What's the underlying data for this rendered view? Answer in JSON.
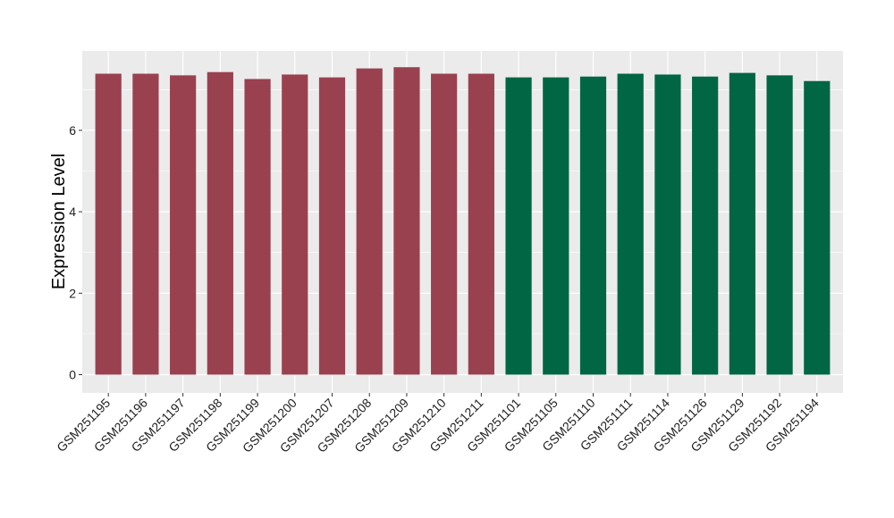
{
  "chart_data": {
    "type": "bar",
    "title": "",
    "xlabel": "",
    "ylabel": "Expression Level",
    "ylim": [
      -0.45,
      7.95
    ],
    "yticks": [
      0,
      2,
      4,
      6
    ],
    "grid": true,
    "categories": [
      "GSM251195",
      "GSM251196",
      "GSM251197",
      "GSM251198",
      "GSM251199",
      "GSM251200",
      "GSM251207",
      "GSM251208",
      "GSM251209",
      "GSM251210",
      "GSM251211",
      "GSM251101",
      "GSM251105",
      "GSM251110",
      "GSM251111",
      "GSM251114",
      "GSM251126",
      "GSM251129",
      "GSM251192",
      "GSM251194"
    ],
    "values": [
      7.39,
      7.39,
      7.35,
      7.43,
      7.26,
      7.37,
      7.3,
      7.52,
      7.55,
      7.39,
      7.39,
      7.3,
      7.3,
      7.32,
      7.39,
      7.37,
      7.32,
      7.41,
      7.35,
      7.21
    ],
    "colors": [
      "#9a414f",
      "#9a414f",
      "#9a414f",
      "#9a414f",
      "#9a414f",
      "#9a414f",
      "#9a414f",
      "#9a414f",
      "#9a414f",
      "#9a414f",
      "#9a414f",
      "#006644",
      "#006644",
      "#006644",
      "#006644",
      "#006644",
      "#006644",
      "#006644",
      "#006644",
      "#006644"
    ],
    "panel_background": "#ebebeb",
    "grid_color": "#ffffff"
  }
}
